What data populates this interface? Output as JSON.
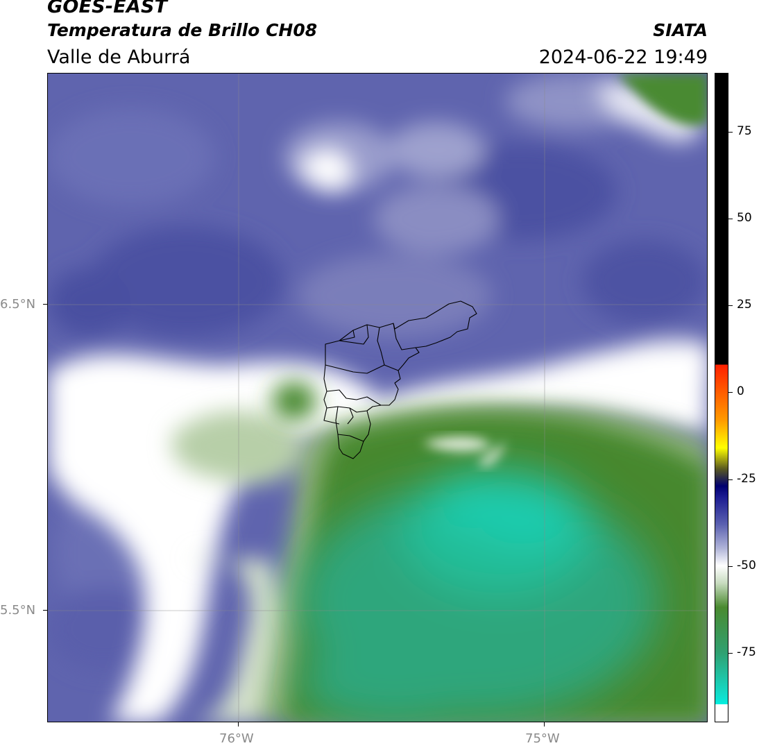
{
  "header": {
    "satellite": "GOES-EAST",
    "product": "Temperatura de Brillo CH08",
    "region": "Valle de Aburrá",
    "organization": "SIATA",
    "datetime": "2024-06-22 19:49"
  },
  "axes": {
    "lat_labels": [
      "6.5°N",
      "5.5°N"
    ],
    "lon_labels": [
      "76°W",
      "75°W"
    ]
  },
  "colorbar": {
    "tick_labels": [
      "75",
      "50",
      "25",
      "0",
      "-25",
      "-50",
      "-75"
    ],
    "tick_values": [
      75,
      50,
      25,
      0,
      -25,
      -50,
      -75
    ],
    "range": [
      -95,
      92
    ],
    "color_stops": [
      {
        "value": 92,
        "color": "#000000"
      },
      {
        "value": 8,
        "color": "#000000"
      },
      {
        "value": 8,
        "color": "#ff2000"
      },
      {
        "value": -8,
        "color": "#ff9a00"
      },
      {
        "value": -16,
        "color": "#ffff00"
      },
      {
        "value": -22,
        "color": "#5a5a20"
      },
      {
        "value": -27,
        "color": "#000070"
      },
      {
        "value": -30,
        "color": "#1a1a90"
      },
      {
        "value": -38,
        "color": "#5a60b0"
      },
      {
        "value": -45,
        "color": "#b0b4d8"
      },
      {
        "value": -50,
        "color": "#ffffff"
      },
      {
        "value": -55,
        "color": "#c8dcc0"
      },
      {
        "value": -62,
        "color": "#4a8a30"
      },
      {
        "value": -75,
        "color": "#30a070"
      },
      {
        "value": -88,
        "color": "#10e0d0"
      },
      {
        "value": -90,
        "color": "#00f0e0"
      },
      {
        "value": -90,
        "color": "#ffffff"
      },
      {
        "value": -95,
        "color": "#ffffff"
      }
    ]
  },
  "colors": {
    "cloud_top_dark": "#5258a6",
    "cloud_top_light": "#8f93c6",
    "white_band": "#ffffff",
    "green_dark": "#47882e",
    "green_mid": "#2fa67c",
    "cyan_core": "#1ccdb0"
  }
}
